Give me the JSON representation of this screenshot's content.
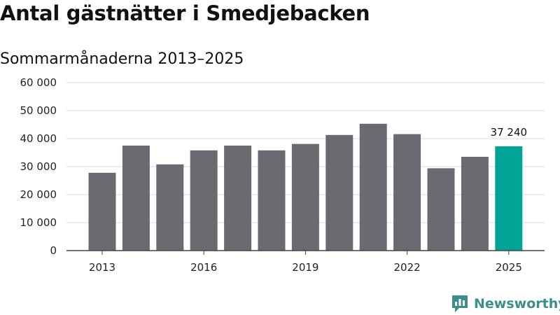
{
  "title": "Antal gästnätter i Smedjebacken",
  "subtitle": "Sommarmånaderna 2013–2025",
  "logo_text": "Newsworthy",
  "colors": {
    "bar": "#6b6a70",
    "highlight": "#00a497",
    "grid": "#dddddd",
    "axis": "#444444"
  },
  "chart_data": {
    "type": "bar",
    "title": "Antal gästnätter i Smedjebacken",
    "subtitle": "Sommarmånaderna 2013–2025",
    "categories": [
      "2013",
      "2014",
      "2015",
      "2016",
      "2017",
      "2018",
      "2019",
      "2020",
      "2021",
      "2022",
      "2023",
      "2024",
      "2025"
    ],
    "x_tick_labels": [
      "2013",
      "2016",
      "2019",
      "2022",
      "2025"
    ],
    "values": [
      27800,
      37500,
      30800,
      35800,
      37500,
      35800,
      38100,
      41300,
      45300,
      41600,
      29400,
      33500,
      37240
    ],
    "highlight_index": 12,
    "data_labels": [
      {
        "category": "2025",
        "text": "37 240"
      }
    ],
    "y_ticks": [
      0,
      10000,
      20000,
      30000,
      40000,
      50000,
      60000
    ],
    "y_tick_labels": [
      "0",
      "10 000",
      "20 000",
      "30 000",
      "40 000",
      "50 000",
      "60 000"
    ],
    "ylim": [
      0,
      60000
    ],
    "xlabel": "",
    "ylabel": "",
    "grid": true
  }
}
